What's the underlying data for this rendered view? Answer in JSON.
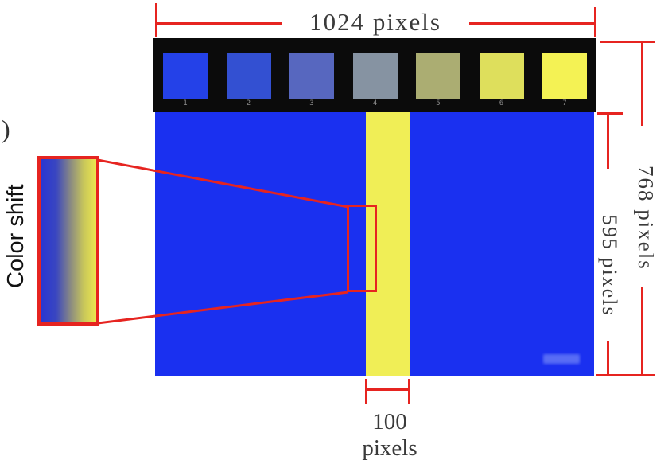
{
  "figure": {
    "partial_label": ")",
    "color_shift_label": "Color shift"
  },
  "dimensions": {
    "top_width_label": "1024 pixels",
    "right_outer_height_label": "768 pixels",
    "right_inner_height_label": "595 pixels",
    "stripe_width_label_line1": "100",
    "stripe_width_label_line2": "pixels"
  },
  "color_bar": {
    "squares": [
      {
        "label": "1",
        "color": "#2441e8"
      },
      {
        "label": "2",
        "color": "#3350d2"
      },
      {
        "label": "3",
        "color": "#5767bf"
      },
      {
        "label": "4",
        "color": "#8693a2"
      },
      {
        "label": "5",
        "color": "#abad72"
      },
      {
        "label": "6",
        "color": "#dedf5c"
      },
      {
        "label": "7",
        "color": "#f4f254"
      }
    ]
  },
  "gradient_swatch": {
    "stops": [
      "#2836d4 0%",
      "#3a46c0 28%",
      "#8d8d80 55%",
      "#c9c75a 78%",
      "#ece74f 100%"
    ]
  },
  "colors": {
    "main_blue": "#1a30f0",
    "stripe_yellow": "#f0ee56",
    "dim_red": "#e62420",
    "bar_black": "#0b0b0b",
    "square_number_gray": "#8a8a8a"
  }
}
